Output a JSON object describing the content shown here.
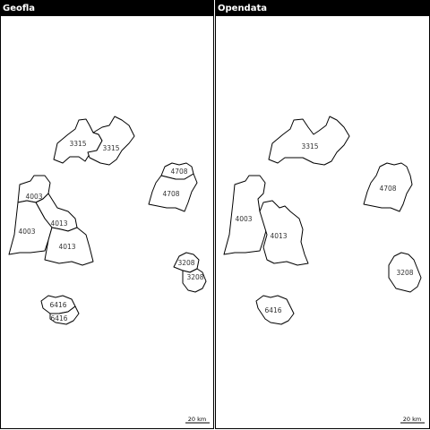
{
  "panels": [
    {
      "title": "Geofla",
      "scale_label": "20 km"
    },
    {
      "title": "Opendata",
      "scale_label": "20 km"
    }
  ],
  "labels": {
    "left": [
      "3315",
      "3315",
      "4708",
      "4708",
      "4003",
      "4013",
      "4003",
      "4013",
      "3208",
      "3208",
      "6416",
      "6416"
    ],
    "right": [
      "3315",
      "4708",
      "4003",
      "4013",
      "3208",
      "6416"
    ]
  },
  "colors": {
    "header_bg": "#000000",
    "header_text": "#ffffff",
    "outline": "#000000"
  }
}
